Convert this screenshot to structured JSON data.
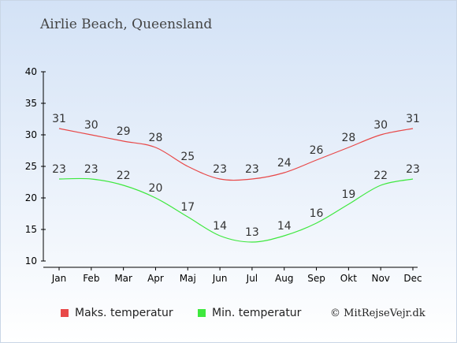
{
  "title": "Airlie Beach, Queensland",
  "copyright": "© MitRejseVejr.dk",
  "colors": {
    "max": "#e84848",
    "min": "#3ee83e",
    "background_top": "#d3e2f6"
  },
  "chart_data": {
    "type": "line",
    "categories": [
      "Jan",
      "Feb",
      "Mar",
      "Apr",
      "Maj",
      "Jun",
      "Jul",
      "Aug",
      "Sep",
      "Okt",
      "Nov",
      "Dec"
    ],
    "series": [
      {
        "name": "Maks. temperatur",
        "values": [
          31,
          30,
          29,
          28,
          25,
          23,
          23,
          24,
          26,
          28,
          30,
          31
        ]
      },
      {
        "name": "Min. temperatur",
        "values": [
          23,
          23,
          22,
          20,
          17,
          14,
          13,
          14,
          16,
          19,
          22,
          23
        ]
      }
    ],
    "yticks": [
      10,
      15,
      20,
      25,
      30,
      35,
      40
    ],
    "ylim": [
      10,
      40
    ],
    "grid": false,
    "legend_position": "bottom-left"
  }
}
